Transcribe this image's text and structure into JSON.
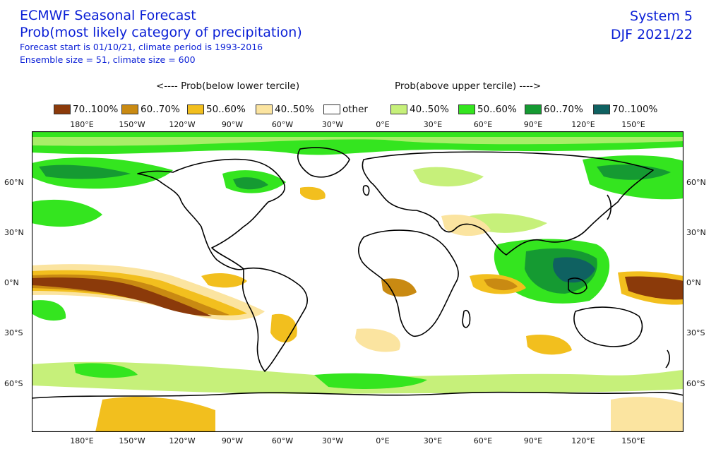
{
  "header": {
    "title": "ECMWF Seasonal Forecast",
    "subtitle": "Prob(most likely category of precipitation)",
    "line3": "Forecast start is 01/10/21, climate period is 1993-2016",
    "line4": "Ensemble size = 51, climate size = 600",
    "system": "System 5",
    "season": "DJF 2021/22"
  },
  "tercile_labels": {
    "below": "<---- Prob(below lower tercile)",
    "above": "Prob(above upper tercile) ---->"
  },
  "legend": [
    {
      "label": "70..100%",
      "color": "#8b3a0a"
    },
    {
      "label": "60..70%",
      "color": "#c98a12"
    },
    {
      "label": "50..60%",
      "color": "#f2bf1e"
    },
    {
      "label": "40..50%",
      "color": "#fbe4a0"
    },
    {
      "label": "other",
      "color": "#ffffff"
    },
    {
      "label": "40..50%",
      "color": "#c6f07a"
    },
    {
      "label": "50..60%",
      "color": "#34e51f"
    },
    {
      "label": "60..70%",
      "color": "#159a32"
    },
    {
      "label": "70..100%",
      "color": "#0f6161"
    }
  ],
  "lon_labels": [
    "180°E",
    "150°W",
    "120°W",
    "90°W",
    "60°W",
    "30°W",
    "0°E",
    "30°E",
    "60°E",
    "90°E",
    "120°E",
    "150°E"
  ],
  "lat_labels": [
    "60°N",
    "30°N",
    "0°N",
    "30°S",
    "60°S"
  ],
  "colors": {
    "title": "#0a1fd6",
    "dry_strong": "#8b3a0a",
    "dry_mod": "#c98a12",
    "dry_weak": "#f2bf1e",
    "dry_faint": "#fbe4a0",
    "wet_faint": "#c6f07a",
    "wet_weak": "#34e51f",
    "wet_mod": "#159a32",
    "wet_strong": "#0f6161"
  }
}
